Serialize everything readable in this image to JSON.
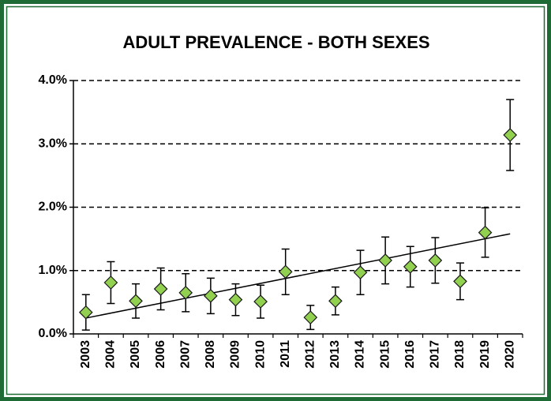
{
  "chart_data": {
    "type": "scatter",
    "title": "ADULT PREVALENCE - BOTH SEXES",
    "categories": [
      "2003",
      "2004",
      "2005",
      "2006",
      "2007",
      "2008",
      "2009",
      "2010",
      "2011",
      "2012",
      "2013",
      "2014",
      "2015",
      "2016",
      "2017",
      "2018",
      "2019",
      "2020"
    ],
    "values": [
      0.34,
      0.81,
      0.52,
      0.71,
      0.65,
      0.6,
      0.54,
      0.51,
      0.98,
      0.26,
      0.52,
      0.97,
      1.16,
      1.06,
      1.16,
      0.83,
      1.6,
      3.14
    ],
    "errors": [
      0.28,
      0.33,
      0.27,
      0.33,
      0.3,
      0.28,
      0.25,
      0.26,
      0.36,
      0.19,
      0.22,
      0.35,
      0.37,
      0.32,
      0.36,
      0.29,
      0.39,
      0.56
    ],
    "color": "#92d050",
    "trend_line": [
      0.25,
      1.58
    ],
    "ylim": [
      0,
      4
    ],
    "yticks": [
      {
        "value": 0,
        "label": "0.0%"
      },
      {
        "value": 1,
        "label": "1.0%"
      },
      {
        "value": 2,
        "label": "2.0%"
      },
      {
        "value": 3,
        "label": "3.0%"
      },
      {
        "value": 4,
        "label": "4.0%"
      }
    ],
    "grid": true
  }
}
